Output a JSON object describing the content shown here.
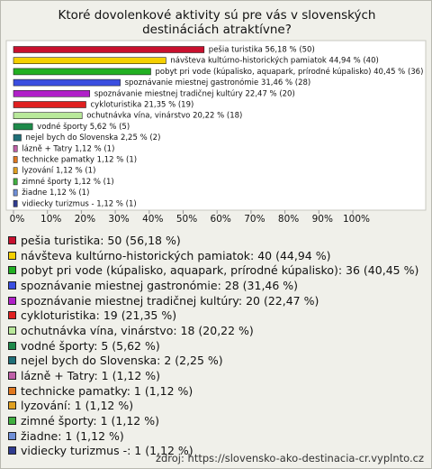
{
  "chart_data": {
    "type": "hbar",
    "title": "Ktoré dovolenkové aktivity sú pre vás v slovenských destináciách atraktívne?",
    "values": [
      56.18,
      44.94,
      40.45,
      31.46,
      22.47,
      21.35,
      20.22,
      5.62,
      2.25,
      1.12,
      1.12,
      1.12,
      1.12,
      1.12,
      1.12
    ],
    "value_labels": [
      "pešia turistika 56,18 % (50)",
      "návšteva kultúrno-historických pamiatok 44,94 % (40)",
      "pobyt pri vode (kúpalisko, aquapark, prírodné kúpalisko) 40,45 % (36)",
      "spoznávanie miestnej gastronómie 31,46 % (28)",
      "spoznávanie miestnej tradičnej kultúry 22,47 % (20)",
      "cykloturistika 21,35 % (19)",
      "ochutnávka vína, vinárstvo 20,22 % (18)",
      "vodné športy 5,62 % (5)",
      "nejel bych do Slovenska 2,25 % (2)",
      "lázně + Tatry 1,12 % (1)",
      "technicke pamatky 1,12 % (1)",
      "lyzování 1,12 % (1)",
      "zimné športy 1,12 % (1)",
      "žiadne 1,12 % (1)",
      "vidiecky turizmus - 1,12 % (1)"
    ],
    "legend_labels": [
      "pešia turistika: 50 (56,18 %)",
      "návšteva kultúrno-historických pamiatok: 40 (44,94 %)",
      "pobyt pri vode (kúpalisko, aquapark, prírodné kúpalisko): 36 (40,45 %)",
      "spoznávanie miestnej gastronómie: 28 (31,46 %)",
      "spoznávanie miestnej tradičnej kultúry: 20 (22,47 %)",
      "cykloturistika: 19 (21,35 %)",
      "ochutnávka vína, vinárstvo: 18 (20,22 %)",
      "vodné športy: 5 (5,62 %)",
      "nejel bych do Slovenska: 2 (2,25 %)",
      "lázně + Tatry: 1 (1,12 %)",
      "technicke pamatky: 1 (1,12 %)",
      "lyzování: 1 (1,12 %)",
      "zimné športy: 1 (1,12 %)",
      "žiadne: 1 (1,12 %)",
      "vidiecky turizmus -: 1 (1,12 %)"
    ],
    "colors": [
      "#c8102e",
      "#f5d000",
      "#22b022",
      "#3a4ee0",
      "#b020c8",
      "#e02020",
      "#b8e89a",
      "#1e8a4a",
      "#1f6f78",
      "#c060a8",
      "#e07820",
      "#e0a020",
      "#40b040",
      "#7090d8",
      "#303c90"
    ],
    "xlim": [
      0,
      100
    ],
    "xticks": [
      {
        "value": 0,
        "label": "0%"
      },
      {
        "value": 10,
        "label": "10%"
      },
      {
        "value": 20,
        "label": "20%"
      },
      {
        "value": 30,
        "label": "30%"
      },
      {
        "value": 40,
        "label": "40%"
      },
      {
        "value": 50,
        "label": "50%"
      },
      {
        "value": 60,
        "label": "60%"
      },
      {
        "value": 70,
        "label": "70%"
      },
      {
        "value": 80,
        "label": "80%"
      },
      {
        "value": 90,
        "label": "90%"
      },
      {
        "value": 100,
        "label": "100%"
      }
    ],
    "source": "zdroj: https://slovensko-ako-destinacia-cr.vyplnto.cz"
  }
}
